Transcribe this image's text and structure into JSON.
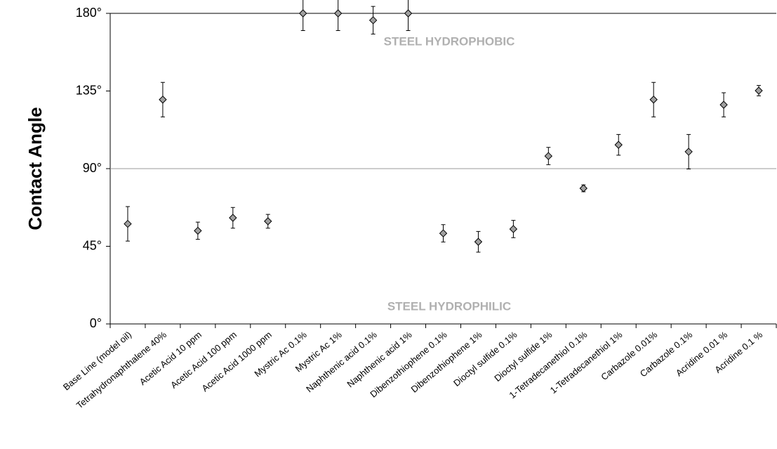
{
  "chart_data": {
    "type": "scatter",
    "y_label": "Contact Angle",
    "annotations": [
      "STEEL HYDROPHOBIC",
      "STEEL HYDROPHILIC"
    ],
    "categories": [
      "Base Line (model oil)",
      "Tetrahydronaphthalene 40%",
      "Acetic Acid 10 ppm",
      "Acetic Acid 100 ppm",
      "Acetic Acid 1000 ppm",
      "Mystric Ac 0.1%",
      "Mystric Ac 1%",
      "Naphthenic acid 0.1%",
      "Naphthenic acid 1%",
      "Dibenzothiophene 0.1%",
      "Dibenzothiophene 1%",
      "Dioctyl sulfide  0.1%",
      "Dioctyl sulfide  1%",
      "1-Tetradecanethiol 0.1%",
      "1-Tetradecanethiol 1%",
      "Carbazole 0.01%",
      "Carbazole 0.1%",
      "Acridine 0.01 %",
      "Acridine 0.1 %"
    ],
    "values": [
      58,
      130,
      54,
      61.5,
      59.5,
      180,
      180,
      176,
      180,
      52.5,
      47.6,
      55,
      97.3,
      78.6,
      103.8,
      130,
      99.8,
      127,
      135.2
    ],
    "errors": [
      10,
      10,
      5,
      6,
      4,
      10,
      10,
      8,
      10,
      5,
      6,
      5,
      5,
      2,
      6,
      10,
      10,
      7,
      3
    ],
    "color": "#a0a0a0",
    "ylim": [
      0,
      180
    ],
    "yticks": [
      {
        "value": 0,
        "label": "0°"
      },
      {
        "value": 45,
        "label": "45°"
      },
      {
        "value": 90,
        "label": "90°"
      },
      {
        "value": 135,
        "label": "135°"
      },
      {
        "value": 180,
        "label": "180°"
      }
    ],
    "hline": 90
  }
}
